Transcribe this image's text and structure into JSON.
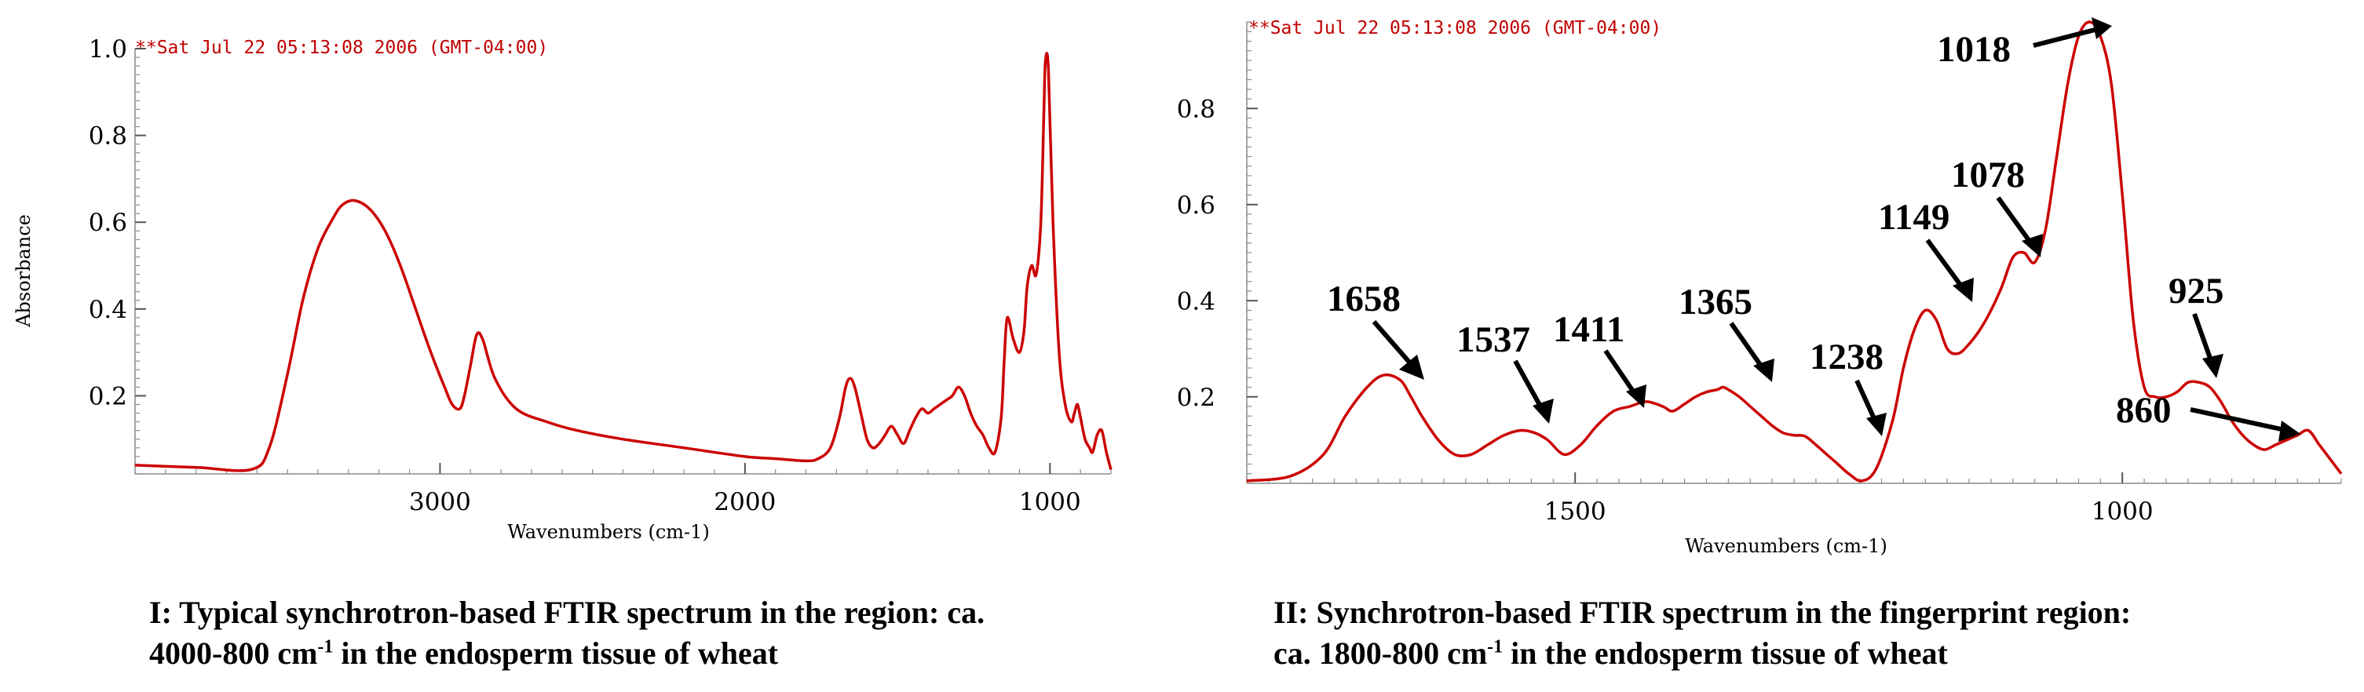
{
  "chart_data": [
    {
      "type": "line",
      "panel": "I",
      "stamp": "**Sat Jul 22 05:13:08 2006 (GMT-04:00)",
      "xlabel": "Wavenumbers (cm-1)",
      "ylabel": "Absorbance",
      "x_reversed": true,
      "xlim": [
        4000,
        800
      ],
      "ylim": [
        0.02,
        1.0
      ],
      "xticks": [
        3000,
        2000,
        1000
      ],
      "yticks": [
        1.0,
        0.8,
        0.6,
        0.4,
        0.2
      ],
      "ytick_labels": [
        "1.0",
        "0.8",
        "0.6",
        "0.4",
        "0.2"
      ],
      "grid": false,
      "series": [
        {
          "color": "#cc0000",
          "x": [
            4000,
            3800,
            3620,
            3560,
            3500,
            3450,
            3400,
            3350,
            3320,
            3280,
            3230,
            3180,
            3130,
            3080,
            3030,
            2985,
            2960,
            2935,
            2920,
            2900,
            2880,
            2860,
            2820,
            2750,
            2650,
            2550,
            2400,
            2200,
            2000,
            1900,
            1800,
            1760,
            1720,
            1690,
            1670,
            1655,
            1640,
            1620,
            1600,
            1580,
            1560,
            1540,
            1520,
            1500,
            1480,
            1460,
            1440,
            1420,
            1400,
            1380,
            1360,
            1340,
            1320,
            1300,
            1280,
            1260,
            1240,
            1220,
            1200,
            1180,
            1160,
            1150,
            1140,
            1120,
            1100,
            1085,
            1075,
            1060,
            1045,
            1030,
            1020,
            1015,
            1005,
            990,
            970,
            950,
            930,
            920,
            910,
            900,
            885,
            870,
            860,
            845,
            830,
            815,
            800
          ],
          "y": [
            0.04,
            0.035,
            0.03,
            0.08,
            0.25,
            0.42,
            0.54,
            0.61,
            0.64,
            0.65,
            0.63,
            0.58,
            0.5,
            0.4,
            0.3,
            0.22,
            0.18,
            0.17,
            0.2,
            0.27,
            0.34,
            0.33,
            0.24,
            0.17,
            0.14,
            0.12,
            0.1,
            0.08,
            0.06,
            0.055,
            0.05,
            0.055,
            0.08,
            0.15,
            0.22,
            0.24,
            0.22,
            0.16,
            0.1,
            0.08,
            0.09,
            0.11,
            0.13,
            0.11,
            0.09,
            0.12,
            0.15,
            0.17,
            0.16,
            0.17,
            0.18,
            0.19,
            0.2,
            0.22,
            0.2,
            0.16,
            0.13,
            0.11,
            0.08,
            0.07,
            0.15,
            0.28,
            0.38,
            0.33,
            0.3,
            0.35,
            0.45,
            0.5,
            0.48,
            0.6,
            0.85,
            0.97,
            0.95,
            0.6,
            0.3,
            0.18,
            0.14,
            0.16,
            0.18,
            0.15,
            0.1,
            0.08,
            0.07,
            0.11,
            0.12,
            0.07,
            0.03
          ]
        }
      ]
    },
    {
      "type": "line",
      "panel": "II",
      "stamp": "**Sat Jul 22 05:13:08 2006 (GMT-04:00)",
      "xlabel": "Wavenumbers (cm-1)",
      "x_reversed": true,
      "xlim": [
        1800,
        800
      ],
      "ylim": [
        0.02,
        0.98
      ],
      "xticks": [
        1500,
        1000
      ],
      "yticks": [
        0.8,
        0.6,
        0.4,
        0.2
      ],
      "ytick_labels": [
        "0.8",
        "0.6",
        "0.4",
        "0.2"
      ],
      "grid": false,
      "series": [
        {
          "color": "#cc0000",
          "x": [
            1800,
            1760,
            1730,
            1710,
            1690,
            1675,
            1660,
            1650,
            1640,
            1625,
            1610,
            1595,
            1580,
            1565,
            1550,
            1537,
            1525,
            1510,
            1495,
            1480,
            1465,
            1450,
            1435,
            1420,
            1411,
            1400,
            1390,
            1380,
            1370,
            1365,
            1360,
            1350,
            1340,
            1330,
            1320,
            1310,
            1300,
            1290,
            1280,
            1270,
            1260,
            1250,
            1238,
            1225,
            1210,
            1200,
            1190,
            1180,
            1170,
            1160,
            1150,
            1140,
            1130,
            1120,
            1110,
            1100,
            1090,
            1080,
            1070,
            1060,
            1050,
            1040,
            1030,
            1020,
            1010,
            1000,
            990,
            980,
            970,
            960,
            950,
            940,
            930,
            920,
            910,
            900,
            890,
            880,
            870,
            860,
            850,
            840,
            830,
            820,
            810,
            800
          ],
          "y": [
            0.025,
            0.035,
            0.08,
            0.16,
            0.22,
            0.245,
            0.235,
            0.2,
            0.16,
            0.11,
            0.08,
            0.08,
            0.1,
            0.12,
            0.13,
            0.125,
            0.11,
            0.08,
            0.1,
            0.14,
            0.17,
            0.18,
            0.19,
            0.18,
            0.17,
            0.185,
            0.2,
            0.21,
            0.215,
            0.22,
            0.215,
            0.2,
            0.18,
            0.16,
            0.14,
            0.125,
            0.12,
            0.118,
            0.1,
            0.08,
            0.06,
            0.04,
            0.025,
            0.05,
            0.15,
            0.26,
            0.34,
            0.38,
            0.36,
            0.3,
            0.29,
            0.31,
            0.34,
            0.38,
            0.43,
            0.49,
            0.5,
            0.48,
            0.55,
            0.7,
            0.85,
            0.95,
            0.98,
            0.95,
            0.85,
            0.62,
            0.36,
            0.22,
            0.2,
            0.2,
            0.21,
            0.23,
            0.23,
            0.22,
            0.19,
            0.15,
            0.12,
            0.1,
            0.09,
            0.1,
            0.11,
            0.12,
            0.13,
            0.1,
            0.07,
            0.04
          ]
        }
      ],
      "annotations": [
        "1658",
        "1537",
        "1411",
        "1365",
        "1238",
        "1149",
        "1078",
        "1018",
        "925",
        "860"
      ]
    }
  ],
  "captions": {
    "left_line1": "I: Typical synchrotron-based FTIR spectrum in the region: ca.",
    "left_line2_a": "4000-800 cm",
    "left_line2_sup": "-1",
    "left_line2_b": " in the endosperm tissue of wheat",
    "right_line1": "II: Synchrotron-based FTIR spectrum in the fingerprint region:",
    "right_line2_a": "ca. 1800-800 cm",
    "right_line2_sup": "-1",
    "right_line2_b": " in the endosperm tissue of wheat"
  }
}
